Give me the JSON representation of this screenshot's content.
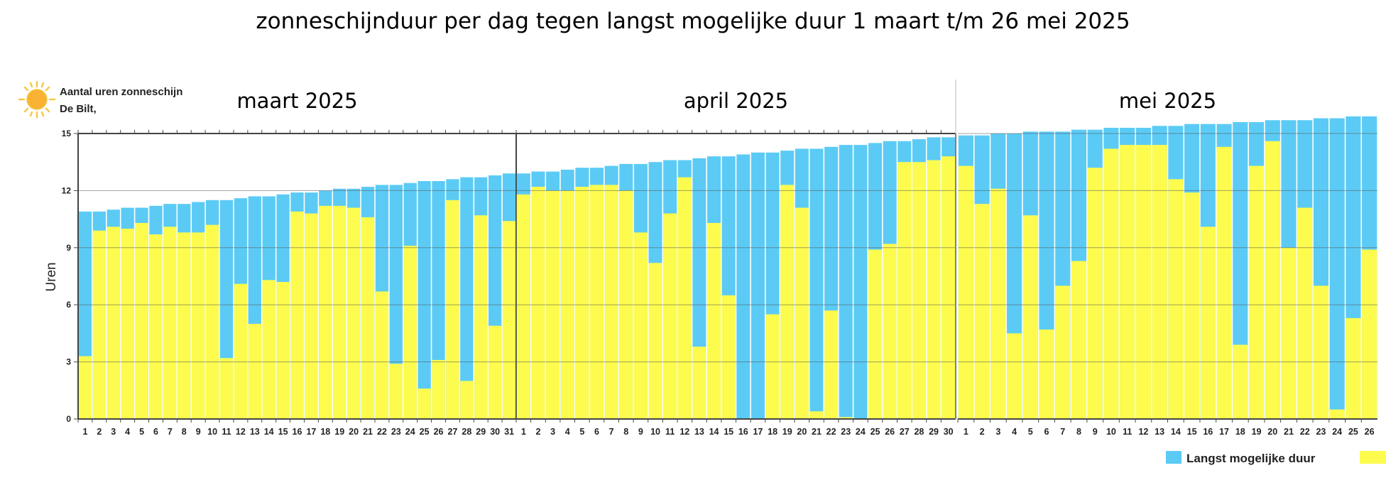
{
  "chart_data": {
    "type": "bar",
    "title": "zonneschijnduur per dag tegen langst mogelijke duur 1 maart t/m 26 mei 2025",
    "header": {
      "line1": "Aantal uren zonneschijn",
      "line2": "De Bilt,"
    },
    "icon": "sun-icon",
    "ylabel": "Uren",
    "ylim": [
      0,
      15
    ],
    "yticks": [
      "0",
      "3",
      "6",
      "9",
      "12",
      "15"
    ],
    "grid": true,
    "legend": {
      "placement": "bottom-right",
      "entries": [
        "Langst mogelijke duur"
      ]
    },
    "colors": {
      "max_duration": "#5bcbf5",
      "sunshine": "#fdfc4e"
    },
    "panels": [
      {
        "label": "maart 2025",
        "days": [
          "1",
          "2",
          "3",
          "4",
          "5",
          "6",
          "7",
          "8",
          "9",
          "10",
          "11",
          "12",
          "13",
          "14",
          "15",
          "16",
          "17",
          "18",
          "19",
          "20",
          "21",
          "22",
          "23",
          "24",
          "25",
          "26",
          "27",
          "28",
          "29",
          "30",
          "31"
        ],
        "series": [
          {
            "name": "Langst mogelijke duur",
            "values": [
              10.9,
              10.9,
              11.0,
              11.1,
              11.1,
              11.2,
              11.3,
              11.3,
              11.4,
              11.5,
              11.5,
              11.6,
              11.7,
              11.7,
              11.8,
              11.9,
              11.9,
              12.0,
              12.1,
              12.1,
              12.2,
              12.3,
              12.3,
              12.4,
              12.5,
              12.5,
              12.6,
              12.7,
              12.7,
              12.8,
              12.9
            ]
          },
          {
            "values": [
              3.3,
              9.9,
              10.1,
              10.0,
              10.3,
              9.7,
              10.1,
              9.8,
              9.8,
              10.2,
              3.2,
              7.1,
              5.0,
              7.3,
              7.2,
              10.9,
              10.8,
              11.2,
              11.2,
              11.1,
              10.6,
              6.7,
              2.9,
              9.1,
              1.6,
              3.1,
              11.5,
              2.0,
              10.7,
              4.9,
              10.4
            ]
          }
        ]
      },
      {
        "label": "april 2025",
        "days": [
          "1",
          "2",
          "3",
          "4",
          "5",
          "6",
          "7",
          "8",
          "9",
          "10",
          "11",
          "12",
          "13",
          "14",
          "15",
          "16",
          "17",
          "18",
          "19",
          "20",
          "21",
          "22",
          "23",
          "24",
          "25",
          "26",
          "27",
          "28",
          "29",
          "30"
        ],
        "series": [
          {
            "name": "Langst mogelijke duur",
            "values": [
              12.9,
              13.0,
              13.0,
              13.1,
              13.2,
              13.2,
              13.3,
              13.4,
              13.4,
              13.5,
              13.6,
              13.6,
              13.7,
              13.8,
              13.8,
              13.9,
              14.0,
              14.0,
              14.1,
              14.2,
              14.2,
              14.3,
              14.4,
              14.4,
              14.5,
              14.6,
              14.6,
              14.7,
              14.8,
              14.8
            ]
          },
          {
            "values": [
              11.8,
              12.2,
              12.0,
              12.0,
              12.2,
              12.3,
              12.3,
              12.0,
              9.8,
              8.2,
              10.8,
              12.7,
              3.8,
              10.3,
              6.5,
              0,
              0,
              5.5,
              12.3,
              11.1,
              0.4,
              5.7,
              0.1,
              0,
              8.9,
              9.2,
              13.5,
              13.5,
              13.6,
              13.8
            ]
          }
        ]
      },
      {
        "label": "mei 2025",
        "days": [
          "1",
          "2",
          "3",
          "4",
          "5",
          "6",
          "7",
          "8",
          "9",
          "10",
          "11",
          "12",
          "13",
          "14",
          "15",
          "16",
          "17",
          "18",
          "19",
          "20",
          "21",
          "22",
          "23",
          "24",
          "25",
          "26"
        ],
        "series": [
          {
            "name": "Langst mogelijke duur",
            "values": [
              14.9,
              14.9,
              15.0,
              15.0,
              15.1,
              15.1,
              15.1,
              15.2,
              15.2,
              15.3,
              15.3,
              15.3,
              15.4,
              15.4,
              15.5,
              15.5,
              15.5,
              15.6,
              15.6,
              15.7,
              15.7,
              15.7,
              15.8,
              15.8,
              15.9,
              15.9
            ]
          },
          {
            "values": [
              13.3,
              11.3,
              12.1,
              4.5,
              10.7,
              4.7,
              7.0,
              8.3,
              13.2,
              14.2,
              14.4,
              14.4,
              14.4,
              12.6,
              11.9,
              10.1,
              14.3,
              3.9,
              13.3,
              14.6,
              9.0,
              11.1,
              7.0,
              0.5,
              5.3,
              8.9
            ]
          }
        ]
      }
    ]
  }
}
